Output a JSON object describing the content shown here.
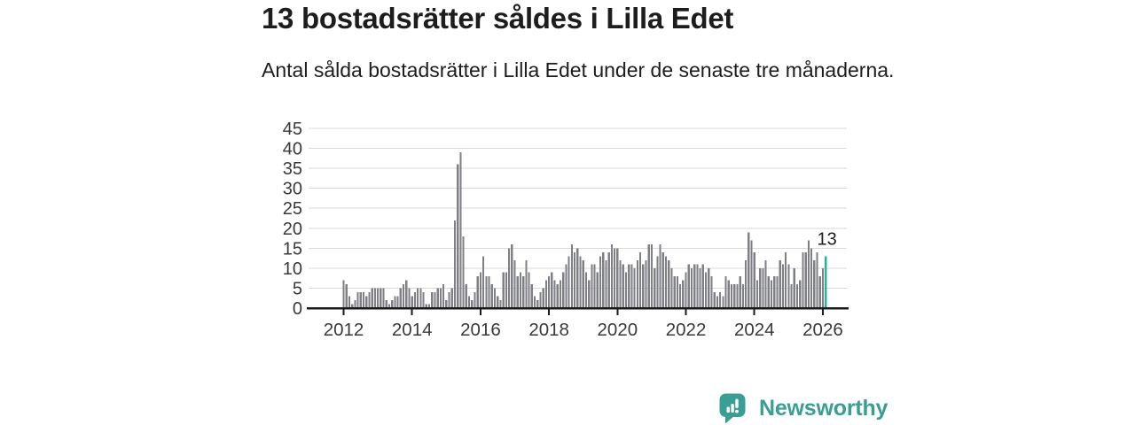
{
  "header": {
    "title": "13 bostadsrätter såldes i Lilla Edet",
    "subtitle": "Antal sålda bostadsrätter i Lilla Edet under de senaste tre månaderna."
  },
  "chart_data": {
    "type": "bar",
    "title": "13 bostadsrätter såldes i Lilla Edet",
    "subtitle": "Antal sålda bostadsrätter i Lilla Edet under de senaste tre månaderna.",
    "frequency": "monthly",
    "x_start": "2012-01",
    "x_end": "2026-02",
    "x_tick_labels": [
      "2012",
      "2014",
      "2016",
      "2018",
      "2020",
      "2022",
      "2024",
      "2026"
    ],
    "y_tick_labels": [
      0,
      5,
      10,
      15,
      20,
      25,
      30,
      35,
      40,
      45
    ],
    "ylim": [
      0,
      45
    ],
    "grid": "horizontal",
    "legend": "none",
    "values": [
      7,
      6,
      3,
      1,
      2,
      4,
      4,
      4,
      3,
      4,
      5,
      5,
      5,
      5,
      5,
      2,
      1,
      2,
      3,
      3,
      5,
      6,
      7,
      5,
      3,
      4,
      5,
      5,
      4,
      1,
      1,
      4,
      4,
      5,
      5,
      6,
      2,
      4,
      5,
      22,
      36,
      39,
      18,
      6,
      3,
      2,
      4,
      8,
      9,
      13,
      8,
      8,
      6,
      5,
      3,
      2,
      9,
      9,
      15,
      16,
      12,
      8,
      9,
      8,
      12,
      9,
      6,
      3,
      2,
      4,
      5,
      7,
      8,
      9,
      7,
      6,
      7,
      9,
      11,
      13,
      16,
      14,
      15,
      13,
      12,
      9,
      7,
      11,
      11,
      9,
      13,
      14,
      12,
      14,
      16,
      15,
      15,
      12,
      11,
      9,
      11,
      11,
      10,
      12,
      14,
      11,
      12,
      16,
      16,
      10,
      13,
      16,
      14,
      13,
      12,
      10,
      8,
      8,
      6,
      7,
      9,
      11,
      10,
      11,
      11,
      10,
      11,
      9,
      10,
      8,
      4,
      3,
      4,
      3,
      8,
      7,
      6,
      6,
      6,
      8,
      6,
      12,
      19,
      17,
      14,
      7,
      10,
      10,
      12,
      8,
      7,
      8,
      8,
      12,
      11,
      14,
      11,
      6,
      10,
      6,
      7,
      14,
      14,
      17,
      15,
      12,
      14,
      8,
      10,
      13
    ],
    "highlight": {
      "index": 169,
      "label": "13",
      "color": "#27b2a6"
    },
    "bar_color": "#7f7f87",
    "axis_color": "#1a1a1a",
    "grid_color": "#d9d9d9",
    "tick_label_color": "#3a3a3a",
    "annotation_color": "#1d1d1d"
  },
  "footer": {
    "brand": "Newsworthy",
    "brand_color": "#3b9e94",
    "icon": "newsworthy-chart-bubble-icon"
  }
}
